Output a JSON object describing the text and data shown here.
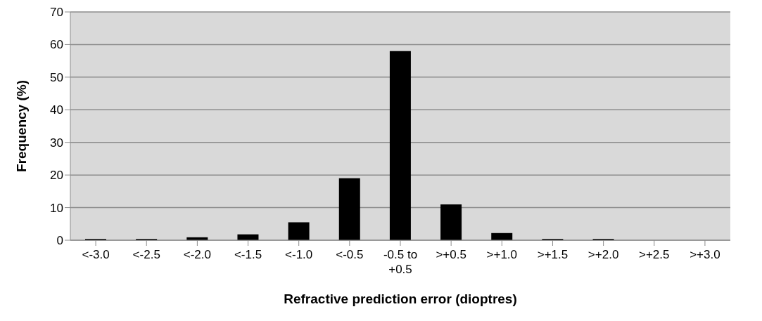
{
  "chart_data": {
    "type": "bar",
    "xlabel": "Refractive prediction error (dioptres)",
    "ylabel": "Frequency (%)",
    "categories": [
      "<-3.0",
      "<-2.5",
      "<-2.0",
      "<-1.5",
      "<-1.0",
      "<-0.5",
      "-0.5 to +0.5",
      ">+0.5",
      ">+1.0",
      ">+1.5",
      ">+2.0",
      ">+2.5",
      ">+3.0"
    ],
    "values": [
      0.4,
      0.4,
      0.9,
      1.8,
      5.5,
      19,
      58,
      11,
      2.2,
      0.4,
      0.4,
      0,
      0
    ],
    "color": "#000000",
    "ylim": [
      0,
      70
    ],
    "yticks": [
      0,
      10,
      20,
      30,
      40,
      50,
      60,
      70
    ],
    "grid": "y"
  }
}
